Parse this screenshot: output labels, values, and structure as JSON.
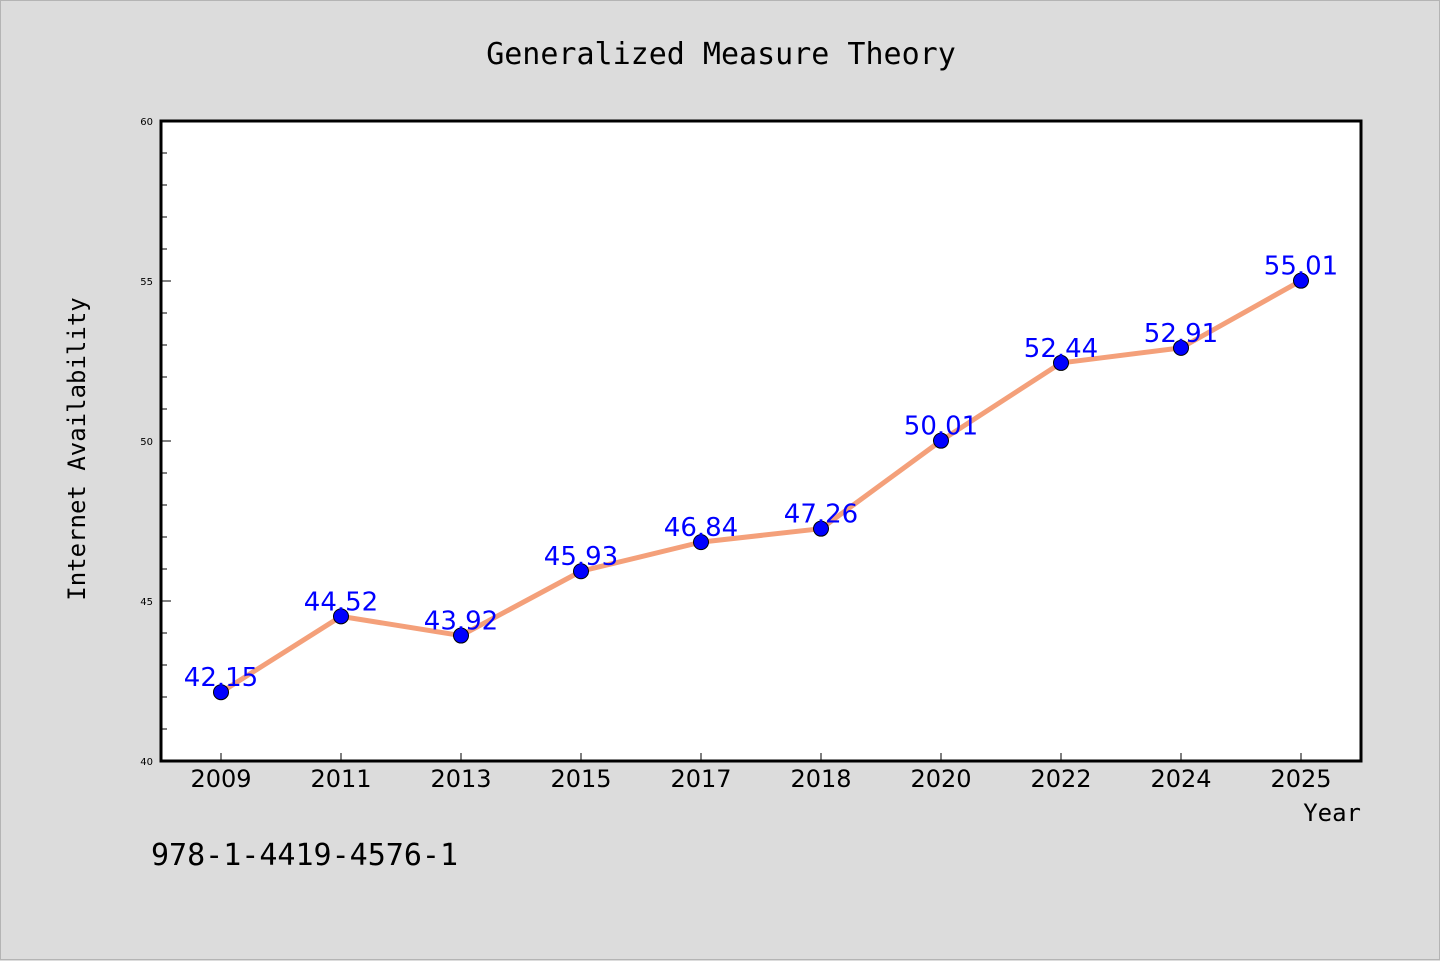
{
  "chart_data": {
    "type": "line",
    "title": "Generalized Measure Theory",
    "xlabel": "Year",
    "ylabel": "Internet Availability",
    "categories": [
      "2009",
      "2011",
      "2013",
      "2015",
      "2017",
      "2018",
      "2020",
      "2022",
      "2024",
      "2025"
    ],
    "series": [
      {
        "values": [
          42.15,
          44.52,
          43.92,
          45.93,
          46.84,
          47.26,
          50.01,
          52.44,
          52.91,
          55.01
        ],
        "labels": [
          "42.15",
          "44.52",
          "43.92",
          "45.93",
          "46.84",
          "47.26",
          "50.01",
          "52.44",
          "52.91",
          "55.01"
        ]
      }
    ],
    "ylim": [
      40,
      60
    ],
    "yticks": [
      "40",
      "45",
      "50",
      "55",
      "60"
    ],
    "grid": false,
    "line_color": "#f4a07a",
    "marker_color": "#0000ff",
    "label_color": "#0000ff"
  },
  "footer": {
    "isbn": "978-1-4419-4576-1"
  }
}
